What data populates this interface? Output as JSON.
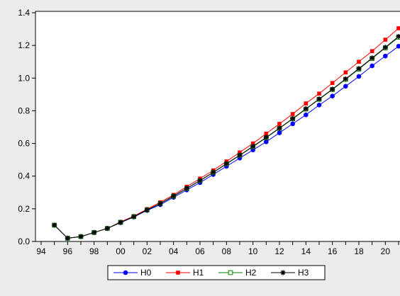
{
  "chart_data": {
    "type": "line",
    "title": "",
    "xlabel": "",
    "ylabel": "",
    "x": [
      "95",
      "96",
      "97",
      "98",
      "99",
      "00",
      "01",
      "02",
      "03",
      "04",
      "05",
      "06",
      "07",
      "08",
      "09",
      "10",
      "11",
      "12",
      "13",
      "14",
      "15",
      "16",
      "17",
      "18",
      "19",
      "20",
      "21"
    ],
    "xtick_labels": [
      "94",
      "96",
      "98",
      "00",
      "02",
      "04",
      "06",
      "08",
      "10",
      "12",
      "14",
      "16",
      "18",
      "20"
    ],
    "xlim": [
      "94",
      "21"
    ],
    "ylim": [
      0.0,
      1.4
    ],
    "yticks": [
      0.0,
      0.2,
      0.4,
      0.6,
      0.8,
      1.0,
      1.2,
      1.4
    ],
    "ytick_labels": [
      "0.0",
      "0.2",
      "0.4",
      "0.6",
      "0.8",
      "1.0",
      "1.2",
      "1.4"
    ],
    "grid": false,
    "legend_position": "bottom",
    "series": [
      {
        "name": "H0",
        "color": "#0000ff",
        "marker": "circle",
        "values": [
          0.1,
          0.02,
          0.03,
          0.055,
          0.08,
          0.115,
          0.15,
          0.19,
          0.225,
          0.27,
          0.315,
          0.36,
          0.41,
          0.46,
          0.51,
          0.56,
          0.61,
          0.665,
          0.72,
          0.775,
          0.835,
          0.89,
          0.95,
          1.01,
          1.075,
          1.135,
          1.195
        ]
      },
      {
        "name": "H1",
        "color": "#ff0000",
        "marker": "square",
        "values": [
          0.1,
          0.02,
          0.03,
          0.055,
          0.08,
          0.12,
          0.155,
          0.198,
          0.24,
          0.285,
          0.335,
          0.385,
          0.435,
          0.49,
          0.545,
          0.6,
          0.66,
          0.72,
          0.78,
          0.845,
          0.905,
          0.97,
          1.035,
          1.1,
          1.165,
          1.235,
          1.305
        ]
      },
      {
        "name": "H2",
        "color": "#008000",
        "marker": "open-square",
        "values": [
          0.1,
          0.02,
          0.03,
          0.055,
          0.08,
          0.117,
          0.152,
          0.193,
          0.232,
          0.277,
          0.324,
          0.372,
          0.422,
          0.475,
          0.527,
          0.58,
          0.635,
          0.692,
          0.75,
          0.81,
          0.87,
          0.93,
          0.992,
          1.055,
          1.12,
          1.185,
          1.25
        ]
      },
      {
        "name": "H3",
        "color": "#000000",
        "marker": "star",
        "values": [
          0.1,
          0.02,
          0.03,
          0.055,
          0.08,
          0.117,
          0.152,
          0.193,
          0.232,
          0.278,
          0.325,
          0.373,
          0.423,
          0.476,
          0.528,
          0.582,
          0.637,
          0.694,
          0.752,
          0.812,
          0.872,
          0.932,
          0.995,
          1.058,
          1.123,
          1.188,
          1.255
        ]
      }
    ]
  }
}
